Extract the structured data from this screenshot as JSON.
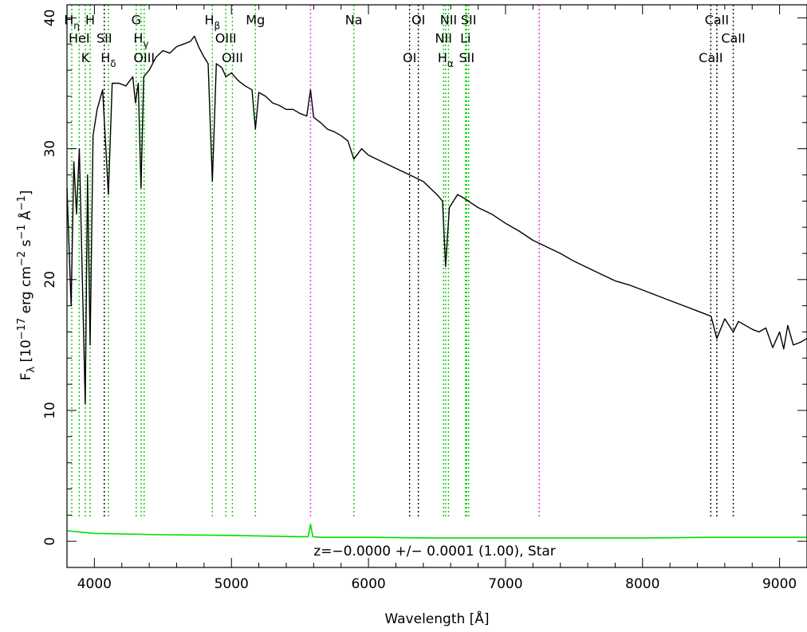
{
  "chart_data": {
    "type": "line",
    "xlabel": "Wavelength [Å]",
    "ylabel": "F_λ [10^-17 erg cm^-2 s^-1 Å^-1]",
    "ylabel_parts": {
      "base": "F",
      "sub": "λ",
      "mid1": " [10",
      "exp1": "−17",
      "mid2": " erg cm",
      "exp2": "−2",
      "mid3": " s",
      "exp3": "−1",
      "mid4": " Å",
      "exp4": "−1",
      "end": "]"
    },
    "xlim": [
      3800,
      9200
    ],
    "ylim": [
      -2,
      41
    ],
    "x_ticks": [
      4000,
      5000,
      6000,
      7000,
      8000,
      9000
    ],
    "y_ticks": [
      0,
      10,
      20,
      30,
      40
    ],
    "x_tick_labels": [
      "4000",
      "5000",
      "6000",
      "7000",
      "8000",
      "9000"
    ],
    "y_tick_labels": [
      "0",
      "10",
      "20",
      "30",
      "40"
    ],
    "grid": false,
    "annotation": "z=−0.0000 +/− 0.0001 (1.00), Star",
    "series": [
      {
        "role": "spectrum",
        "color": "#000000",
        "x": [
          3800,
          3830,
          3850,
          3870,
          3890,
          3910,
          3933,
          3950,
          3969,
          3990,
          4020,
          4060,
          4102,
          4130,
          4180,
          4230,
          4280,
          4300,
          4320,
          4340,
          4360,
          4400,
          4450,
          4500,
          4550,
          4600,
          4650,
          4700,
          4730,
          4760,
          4800,
          4830,
          4861,
          4890,
          4930,
          4960,
          5000,
          5050,
          5100,
          5150,
          5175,
          5200,
          5250,
          5300,
          5350,
          5400,
          5450,
          5500,
          5550,
          5577,
          5600,
          5650,
          5700,
          5750,
          5800,
          5850,
          5893,
          5950,
          6000,
          6100,
          6200,
          6300,
          6400,
          6500,
          6540,
          6563,
          6590,
          6650,
          6700,
          6800,
          6900,
          7000,
          7100,
          7200,
          7300,
          7400,
          7500,
          7600,
          7700,
          7800,
          7900,
          8000,
          8100,
          8200,
          8300,
          8400,
          8500,
          8542,
          8600,
          8662,
          8700,
          8750,
          8800,
          8850,
          8900,
          8950,
          9000,
          9030,
          9060,
          9100,
          9150,
          9200
        ],
        "y": [
          27,
          18,
          29,
          25,
          30,
          21,
          10.5,
          28,
          15,
          31,
          33,
          34.5,
          26.5,
          35,
          35,
          34.8,
          35.5,
          33.5,
          35,
          27,
          35.5,
          36,
          37,
          37.5,
          37.3,
          37.8,
          38,
          38.2,
          38.6,
          37.8,
          37,
          36.5,
          27.5,
          36.5,
          36.2,
          35.5,
          35.8,
          35.2,
          34.8,
          34.5,
          31.5,
          34.3,
          34,
          33.5,
          33.3,
          33,
          33,
          32.7,
          32.5,
          34.5,
          32.4,
          32,
          31.5,
          31.3,
          31,
          30.6,
          29.2,
          30,
          29.5,
          29,
          28.5,
          28,
          27.5,
          26.5,
          26,
          21,
          25.5,
          26.5,
          26.2,
          25.5,
          25,
          24.3,
          23.7,
          23,
          22.5,
          22,
          21.4,
          20.9,
          20.4,
          19.9,
          19.6,
          19.2,
          18.8,
          18.4,
          18,
          17.6,
          17.2,
          15.5,
          17,
          16,
          16.8,
          16.5,
          16.2,
          16,
          16.3,
          14.8,
          16,
          14.7,
          16.5,
          15,
          15.2,
          15.5
        ]
      },
      {
        "role": "noise",
        "color": "#00dd00",
        "x": [
          3800,
          3900,
          4000,
          4500,
          5000,
          5500,
          5560,
          5577,
          5594,
          5650,
          6000,
          6500,
          7000,
          7500,
          8000,
          8500,
          9000,
          9200
        ],
        "y": [
          0.8,
          0.7,
          0.6,
          0.5,
          0.45,
          0.35,
          0.35,
          1.3,
          0.35,
          0.3,
          0.3,
          0.25,
          0.25,
          0.25,
          0.25,
          0.3,
          0.3,
          0.3
        ]
      }
    ],
    "reference_lines": [
      {
        "x": 3835,
        "color": "#00cc00"
      },
      {
        "x": 3889,
        "color": "#00cc00"
      },
      {
        "x": 3934,
        "color": "#00cc00"
      },
      {
        "x": 3969,
        "color": "#00cc00"
      },
      {
        "x": 4072,
        "color": "#000000"
      },
      {
        "x": 4102,
        "color": "#00cc00"
      },
      {
        "x": 4305,
        "color": "#00cc00"
      },
      {
        "x": 4341,
        "color": "#00cc00"
      },
      {
        "x": 4363,
        "color": "#00cc00"
      },
      {
        "x": 4861,
        "color": "#00cc00"
      },
      {
        "x": 4959,
        "color": "#00cc00"
      },
      {
        "x": 5007,
        "color": "#00cc00"
      },
      {
        "x": 5175,
        "color": "#00cc00"
      },
      {
        "x": 5577,
        "color": "#dd33dd"
      },
      {
        "x": 5893,
        "color": "#00cc00"
      },
      {
        "x": 6300,
        "color": "#000000"
      },
      {
        "x": 6364,
        "color": "#000000"
      },
      {
        "x": 6548,
        "color": "#00cc00"
      },
      {
        "x": 6563,
        "color": "#00cc00"
      },
      {
        "x": 6584,
        "color": "#00cc00"
      },
      {
        "x": 6708,
        "color": "#00cc00"
      },
      {
        "x": 6717,
        "color": "#00cc00"
      },
      {
        "x": 6731,
        "color": "#00cc00"
      },
      {
        "x": 7246,
        "color": "#dd33dd"
      },
      {
        "x": 8498,
        "color": "#000000"
      },
      {
        "x": 8542,
        "color": "#000000"
      },
      {
        "x": 8662,
        "color": "#000000"
      }
    ],
    "line_labels": [
      {
        "text": "H",
        "sub": "η",
        "x": 3835,
        "y": 39.5
      },
      {
        "text": "H",
        "x": 3969,
        "y": 39.5
      },
      {
        "text": "HeI",
        "x": 3889,
        "y": 38.1
      },
      {
        "text": "K",
        "x": 3934,
        "y": 36.6
      },
      {
        "text": "SII",
        "x": 4072,
        "y": 38.1
      },
      {
        "text": "H",
        "sub": "δ",
        "x": 4102,
        "y": 36.6
      },
      {
        "text": "G",
        "x": 4305,
        "y": 39.5
      },
      {
        "text": "H",
        "sub": "γ",
        "x": 4341,
        "y": 38.1
      },
      {
        "text": "OIII",
        "x": 4363,
        "y": 36.6
      },
      {
        "text": "H",
        "sub": "β",
        "x": 4861,
        "y": 39.5
      },
      {
        "text": "OIII",
        "x": 4959,
        "y": 38.1
      },
      {
        "text": "OIII",
        "x": 5007,
        "y": 36.6
      },
      {
        "text": "Mg",
        "x": 5175,
        "y": 39.5
      },
      {
        "text": "Na",
        "x": 5893,
        "y": 39.5
      },
      {
        "text": "OI",
        "x": 6364,
        "y": 39.5
      },
      {
        "text": "OI",
        "x": 6300,
        "y": 36.6
      },
      {
        "text": "NII",
        "x": 6584,
        "y": 39.5
      },
      {
        "text": "NII",
        "x": 6548,
        "y": 38.1
      },
      {
        "text": "H",
        "sub": "α",
        "x": 6563,
        "y": 36.6
      },
      {
        "text": "SII",
        "x": 6731,
        "y": 39.5
      },
      {
        "text": "Li",
        "x": 6708,
        "y": 38.1
      },
      {
        "text": "SII",
        "x": 6717,
        "y": 36.6
      },
      {
        "text": "CaII",
        "x": 8542,
        "y": 39.5
      },
      {
        "text": "CaII",
        "x": 8662,
        "y": 38.1
      },
      {
        "text": "CaII",
        "x": 8498,
        "y": 36.6
      }
    ]
  }
}
